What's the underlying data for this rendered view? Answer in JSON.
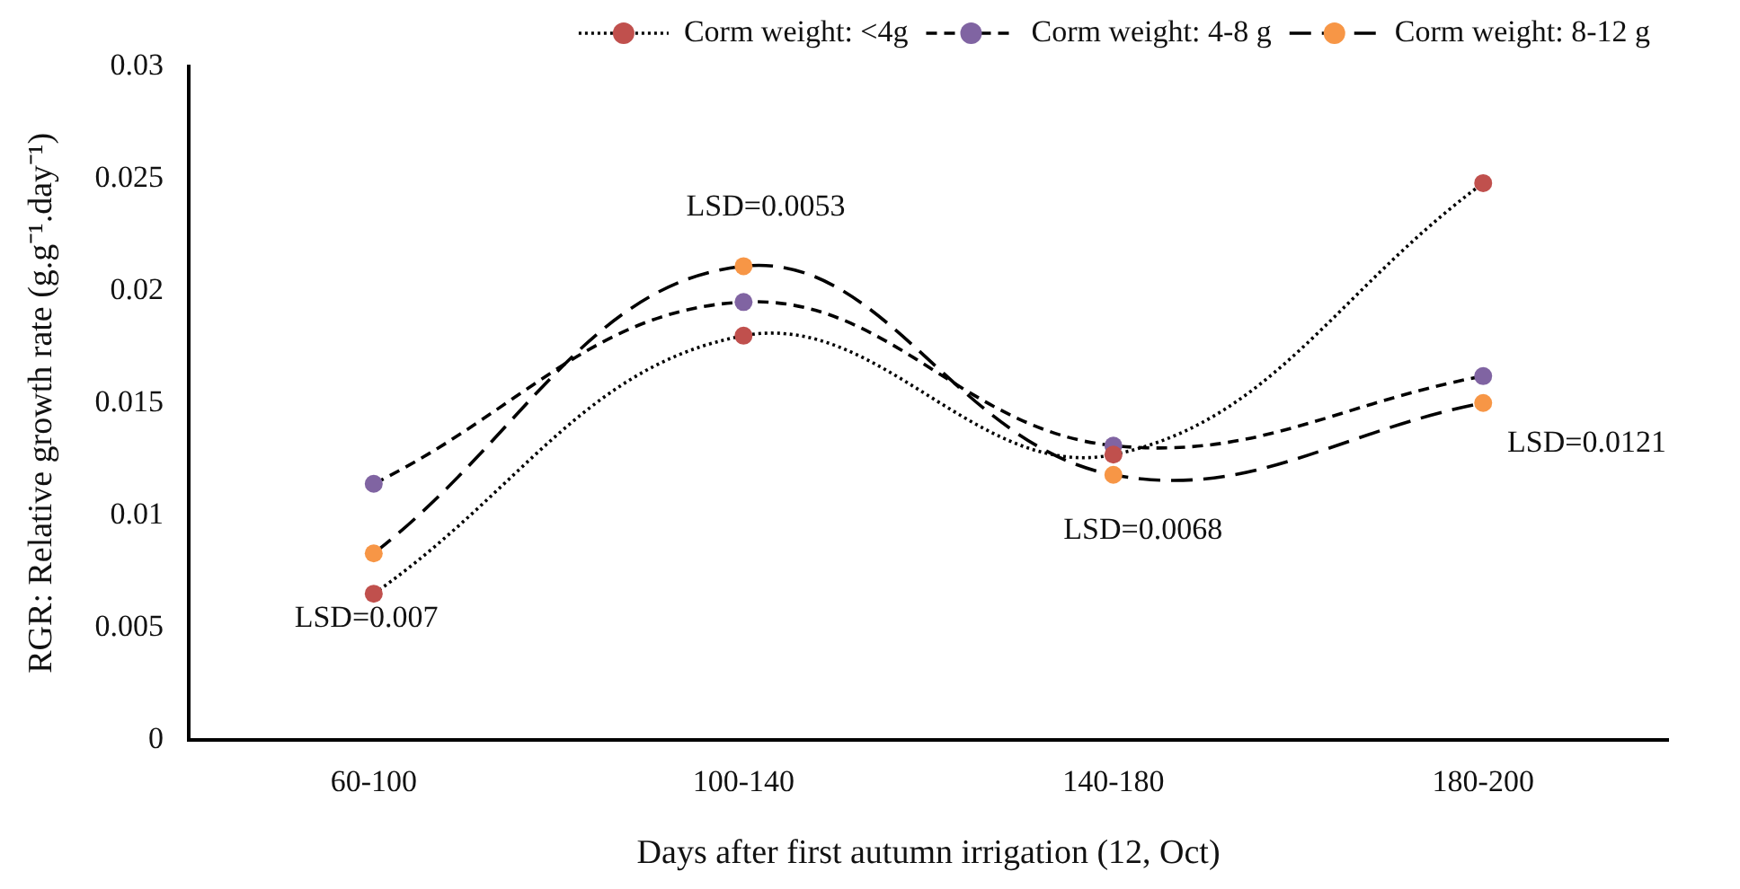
{
  "chart_data": {
    "type": "line",
    "xlabel": "Days after first autumn irrigation (12, Oct)",
    "ylabel": "RGR: Relative growth rate (g.g⁻¹.day⁻¹)",
    "categories": [
      "60-100",
      "100-140",
      "140-180",
      "180-200"
    ],
    "series": [
      {
        "name": "Corm weight: <4g",
        "color": "#c0504d",
        "line_style": "dotted",
        "values": [
          0.0065,
          0.018,
          0.0127,
          0.0248
        ]
      },
      {
        "name": "Corm weight: 4-8 g",
        "color": "#8064a2",
        "line_style": "dashed",
        "values": [
          0.0114,
          0.0195,
          0.0131,
          0.0162
        ]
      },
      {
        "name": "Corm weight: 8-12 g",
        "color": "#f79646",
        "line_style": "longdash",
        "values": [
          0.0083,
          0.0211,
          0.0118,
          0.015
        ]
      }
    ],
    "ylim": [
      0,
      0.03
    ],
    "yticks": [
      0,
      0.005,
      0.01,
      0.015,
      0.02,
      0.025,
      0.03
    ],
    "grid": false,
    "legend": "top",
    "marker": "circle",
    "annotations": [
      "LSD=0.007",
      "LSD=0.0053",
      "LSD=0.0068",
      "LSD=0.0121"
    ]
  }
}
